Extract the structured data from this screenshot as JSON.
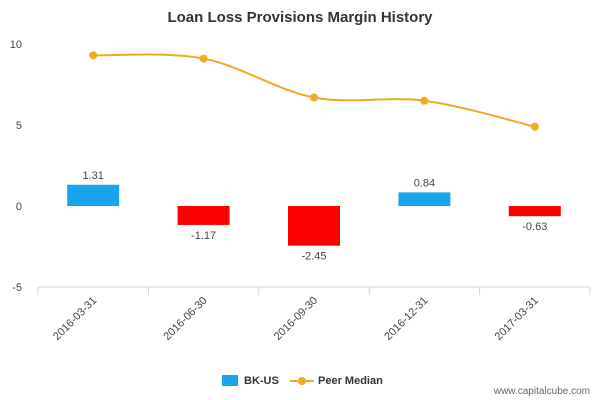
{
  "chart_data": {
    "type": "bar",
    "title": "Loan Loss Provisions Margin History",
    "categories": [
      "2016-03-31",
      "2016-06-30",
      "2016-09-30",
      "2016-12-31",
      "2017-03-31"
    ],
    "series": [
      {
        "name": "BK-US",
        "type": "bar",
        "values": [
          1.31,
          -1.17,
          -2.45,
          0.84,
          -0.63
        ],
        "labels": [
          "1.31",
          "-1.17",
          "-2.45",
          "0.84",
          "-0.63"
        ],
        "color_positive": "#1aa3ef",
        "color_negative": "#ff0000"
      },
      {
        "name": "Peer Median",
        "type": "line",
        "values": [
          9.3,
          9.1,
          6.7,
          6.5,
          4.9
        ],
        "color": "#f5a623"
      }
    ],
    "yticks": [
      10,
      5,
      0,
      -5
    ],
    "ylim": [
      -5,
      10
    ],
    "grid": false,
    "legend_position": "bottom-center"
  },
  "watermark": "www.capitalcube.com"
}
